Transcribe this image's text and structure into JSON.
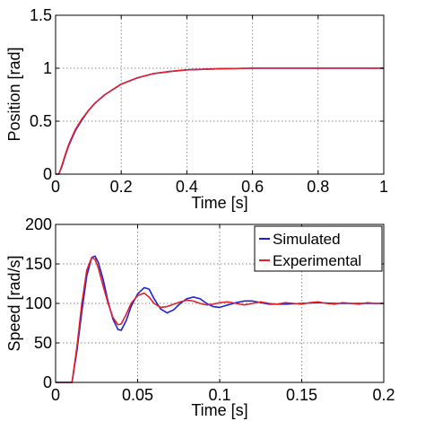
{
  "chart_data": [
    {
      "type": "line",
      "xlabel": "Time [s]",
      "ylabel": "Position [rad]",
      "xlim": [
        0,
        1
      ],
      "ylim": [
        0,
        1.5
      ],
      "xticks": [
        0,
        0.2,
        0.4,
        0.6,
        0.8,
        1
      ],
      "xtick_labels": [
        "0",
        "0.2",
        "0.4",
        "0.6",
        "0.8",
        "1"
      ],
      "yticks": [
        0,
        0.5,
        1,
        1.5
      ],
      "ytick_labels": [
        "0",
        "0.5",
        "1",
        "1.5"
      ],
      "grid": true,
      "series": [
        {
          "color": "#1f1fd6",
          "x": [
            0,
            0.01,
            0.02,
            0.03,
            0.04,
            0.05,
            0.06,
            0.08,
            0.1,
            0.12,
            0.15,
            0.2,
            0.25,
            0.3,
            0.35,
            0.4,
            0.5,
            0.6,
            0.7,
            0.8,
            0.9,
            1.0
          ],
          "y": [
            0,
            0.0,
            0.08,
            0.18,
            0.27,
            0.34,
            0.41,
            0.51,
            0.6,
            0.67,
            0.75,
            0.85,
            0.91,
            0.95,
            0.97,
            0.985,
            0.995,
            1.0,
            1.0,
            1.0,
            1.0,
            1.0
          ]
        },
        {
          "color": "#e0202a",
          "x": [
            0,
            0.01,
            0.02,
            0.03,
            0.04,
            0.05,
            0.06,
            0.08,
            0.1,
            0.12,
            0.15,
            0.2,
            0.25,
            0.3,
            0.35,
            0.4,
            0.5,
            0.6,
            0.7,
            0.8,
            0.9,
            1.0
          ],
          "y": [
            0,
            0.0,
            0.09,
            0.19,
            0.28,
            0.35,
            0.42,
            0.52,
            0.6,
            0.67,
            0.75,
            0.85,
            0.91,
            0.95,
            0.97,
            0.985,
            0.995,
            1.0,
            1.0,
            1.0,
            1.0,
            1.0
          ]
        }
      ]
    },
    {
      "type": "line",
      "xlabel": "Time [s]",
      "ylabel": "Speed [rad/s]",
      "xlim": [
        0,
        0.2
      ],
      "ylim": [
        0,
        200
      ],
      "xticks": [
        0,
        0.05,
        0.1,
        0.15,
        0.2
      ],
      "xtick_labels": [
        "0",
        "0.05",
        "0.1",
        "0.15",
        "0.2"
      ],
      "yticks": [
        0,
        50,
        100,
        150,
        200
      ],
      "ytick_labels": [
        "0",
        "50",
        "100",
        "150",
        "200"
      ],
      "grid": true,
      "legend": "top-right",
      "series": [
        {
          "name": "Simulated",
          "color": "#1f1fd6",
          "x": [
            0,
            0.01,
            0.013,
            0.016,
            0.019,
            0.022,
            0.024,
            0.026,
            0.029,
            0.032,
            0.035,
            0.038,
            0.04,
            0.043,
            0.046,
            0.05,
            0.054,
            0.057,
            0.06,
            0.064,
            0.068,
            0.072,
            0.076,
            0.08,
            0.084,
            0.088,
            0.092,
            0.096,
            0.1,
            0.105,
            0.11,
            0.115,
            0.12,
            0.125,
            0.13,
            0.14,
            0.15,
            0.16,
            0.17,
            0.18,
            0.19,
            0.2
          ],
          "y": [
            0,
            0,
            40,
            90,
            135,
            158,
            160,
            152,
            130,
            102,
            80,
            67,
            66,
            78,
            96,
            112,
            120,
            118,
            106,
            93,
            88,
            92,
            100,
            106,
            108,
            106,
            100,
            96,
            95,
            98,
            101,
            103,
            103,
            101,
            99,
            99,
            100,
            101,
            100,
            100,
            100,
            100
          ]
        },
        {
          "name": "Experimental",
          "color": "#e0202a",
          "x": [
            0,
            0.01,
            0.013,
            0.016,
            0.019,
            0.022,
            0.024,
            0.026,
            0.029,
            0.032,
            0.035,
            0.038,
            0.04,
            0.043,
            0.046,
            0.05,
            0.054,
            0.057,
            0.06,
            0.064,
            0.068,
            0.072,
            0.076,
            0.08,
            0.084,
            0.088,
            0.092,
            0.096,
            0.1,
            0.105,
            0.11,
            0.115,
            0.12,
            0.125,
            0.13,
            0.135,
            0.14,
            0.145,
            0.15,
            0.155,
            0.16,
            0.165,
            0.17,
            0.175,
            0.18,
            0.185,
            0.19,
            0.195,
            0.2
          ],
          "y": [
            0,
            0,
            45,
            100,
            142,
            158,
            156,
            145,
            122,
            100,
            82,
            73,
            74,
            86,
            100,
            110,
            113,
            108,
            100,
            95,
            96,
            99,
            102,
            104,
            103,
            100,
            98,
            99,
            101,
            102,
            100,
            98,
            100,
            102,
            100,
            99,
            101,
            100,
            99,
            101,
            102,
            100,
            99,
            101,
            100,
            99,
            101,
            100,
            100
          ]
        }
      ]
    }
  ]
}
